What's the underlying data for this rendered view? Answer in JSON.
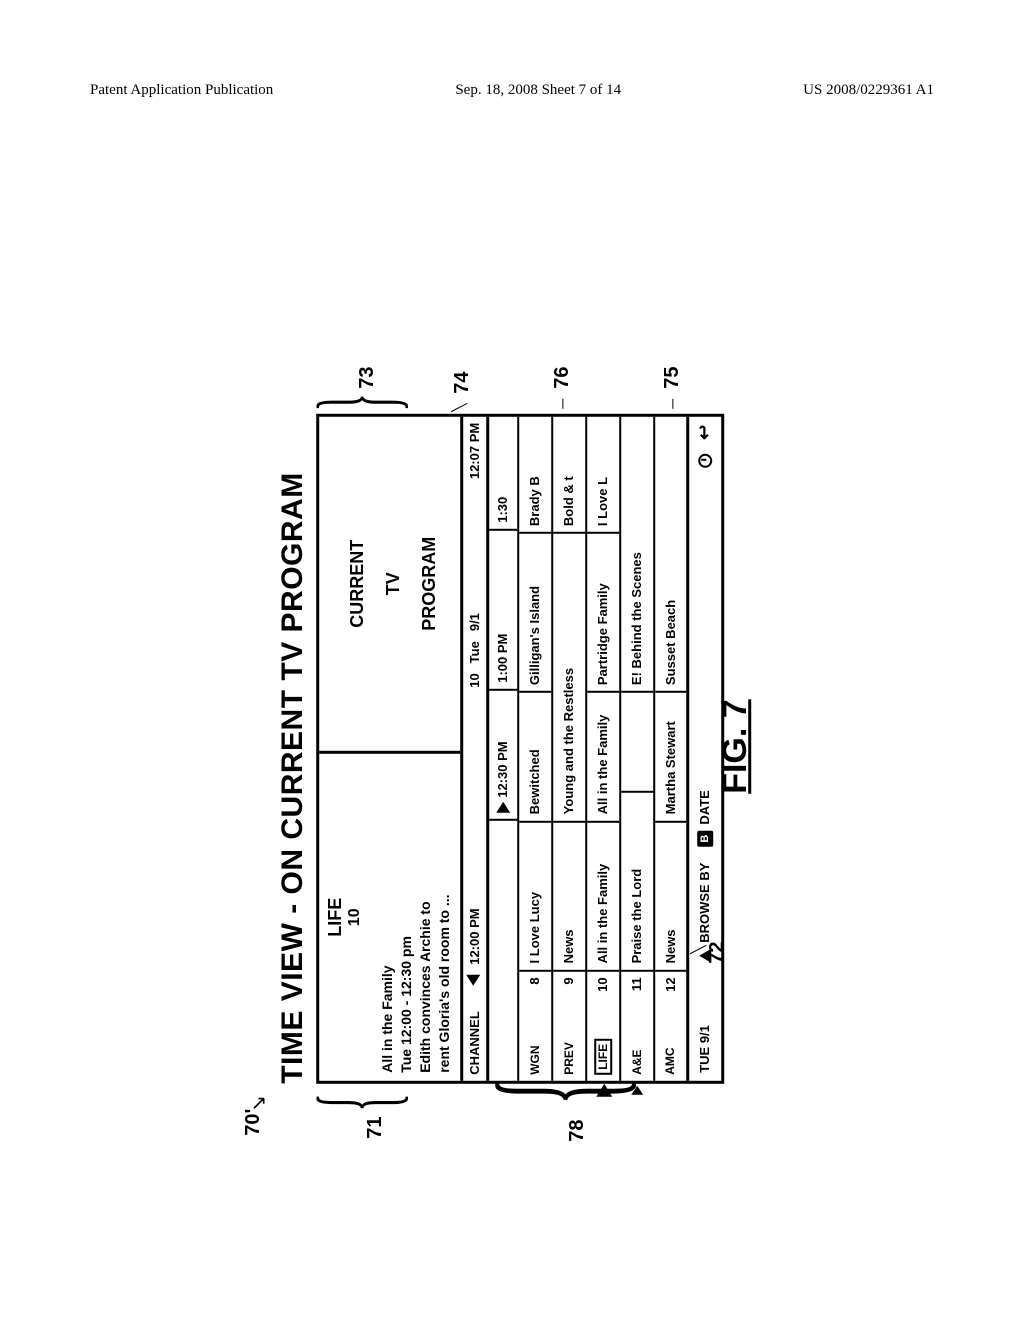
{
  "header": {
    "left": "Patent Application Publication",
    "center": "Sep. 18, 2008  Sheet 7 of 14",
    "right": "US 2008/0229361 A1"
  },
  "figure": {
    "title": "TIME VIEW - ON CURRENT TV PROGRAM",
    "label": "FIG. 7"
  },
  "info_panel": {
    "channel_name": "LIFE",
    "channel_number": "10",
    "program_title": "All in the Family",
    "program_time": "Tue 12:00 - 12:30 pm",
    "desc_line1": "Edith convinces Archie to",
    "desc_line2": "rent Gloria's old room to ..."
  },
  "preview": {
    "line1": "CURRENT",
    "line2": "TV",
    "line3": "PROGRAM"
  },
  "time_bar": {
    "label": "CHANNEL",
    "t1": "12:00 PM",
    "t2": "10",
    "t3": "Tue",
    "t4": "9/1",
    "t5": "12:07 PM"
  },
  "header_row": {
    "s1": "12:30 PM",
    "s2": "1:00 PM",
    "s3": "1:30"
  },
  "rows": [
    {
      "name": "WGN",
      "num": "8",
      "c1": "I Love Lucy",
      "c1w": 150,
      "c2": "Bewitched",
      "c2w": 130,
      "c3": "Gilligan's Island",
      "c3w": 160,
      "c4": "Brady B",
      "c4w": 118
    },
    {
      "name": "PREV",
      "num": "9",
      "c1": "News",
      "c1w": 150,
      "c2": "Young and the Restless",
      "c2w": 290,
      "c3": "",
      "c3w": 0,
      "c4": "Bold & t",
      "c4w": 118
    },
    {
      "name": "LIFE",
      "num": "10",
      "c1": "All in the Family",
      "c1w": 150,
      "c2": "All in the Family",
      "c2w": 130,
      "c3": "Partridge Family",
      "c3w": 160,
      "c4": "I Love L",
      "c4w": 118
    },
    {
      "name": "A&E",
      "num": "11",
      "c1": "Praise the Lord",
      "c1w": 180,
      "c2": "",
      "c2w": 100,
      "c3": "E! Behind the Scenes",
      "c3w": 278,
      "c4": "",
      "c4w": 0
    },
    {
      "name": "AMC",
      "num": "12",
      "c1": "News",
      "c1w": 150,
      "c2": "Martha Stewart",
      "c2w": 130,
      "c3": "Susset Beach",
      "c3w": 278,
      "c4": "",
      "c4w": 0
    }
  ],
  "footer": {
    "date": "TUE 9/1",
    "browse": "BROWSE BY",
    "date_btn": "DATE"
  },
  "refs": {
    "r70": "70'",
    "r71": "71",
    "r72": "72",
    "r73": "73",
    "r74": "74",
    "r75": "75",
    "r76": "76",
    "r78": "78"
  }
}
